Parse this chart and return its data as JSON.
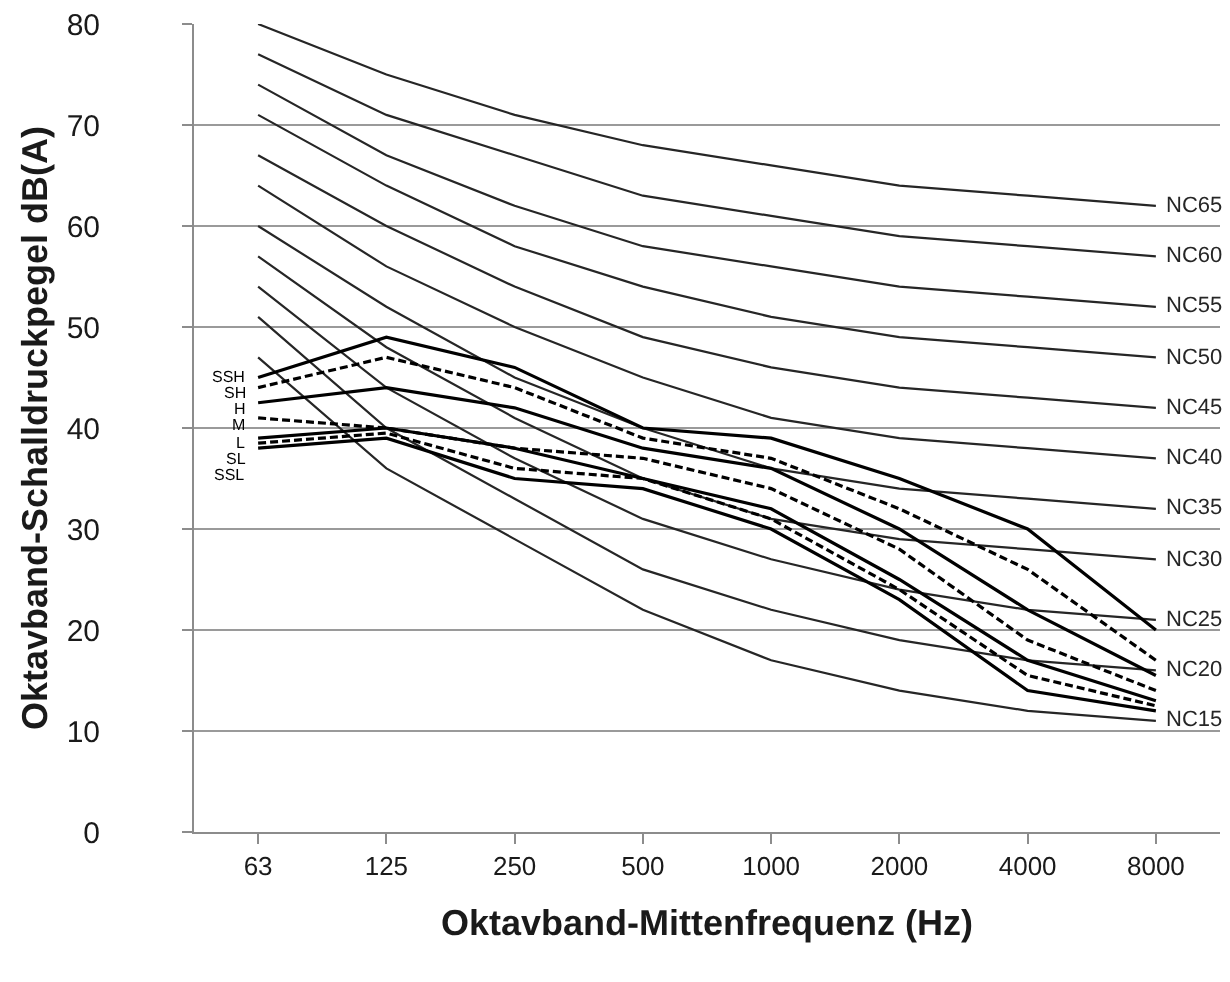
{
  "chart_data": {
    "type": "line",
    "xlabel": "Oktavband-Mittenfrequenz (Hz)",
    "ylabel": "Oktavband-Schalldruckpegel dB(A)",
    "categories": [
      "63",
      "125",
      "250",
      "500",
      "1000",
      "2000",
      "4000",
      "8000"
    ],
    "ylim": [
      0,
      80
    ],
    "yticks": [
      0,
      10,
      20,
      30,
      40,
      50,
      60,
      70,
      80
    ],
    "grid": "y",
    "legend": false,
    "marker": "none",
    "series": [
      {
        "name": "NC65",
        "color": "#262626",
        "values": [
          80,
          75,
          71,
          68,
          66,
          64,
          63,
          62
        ]
      },
      {
        "name": "NC60",
        "color": "#262626",
        "values": [
          77,
          71,
          67,
          63,
          61,
          59,
          58,
          57
        ]
      },
      {
        "name": "NC55",
        "color": "#262626",
        "values": [
          74,
          67,
          62,
          58,
          56,
          54,
          53,
          52
        ]
      },
      {
        "name": "NC50",
        "color": "#262626",
        "values": [
          71,
          64,
          58,
          54,
          51,
          49,
          48,
          47
        ]
      },
      {
        "name": "NC45",
        "color": "#262626",
        "values": [
          67,
          60,
          54,
          49,
          46,
          44,
          43,
          42
        ]
      },
      {
        "name": "NC40",
        "color": "#262626",
        "values": [
          64,
          56,
          50,
          45,
          41,
          39,
          38,
          37
        ]
      },
      {
        "name": "NC35",
        "color": "#262626",
        "values": [
          60,
          52,
          45,
          40,
          36,
          34,
          33,
          32
        ]
      },
      {
        "name": "NC30",
        "color": "#262626",
        "values": [
          57,
          48,
          41,
          35,
          31,
          29,
          28,
          27
        ]
      },
      {
        "name": "NC25",
        "color": "#262626",
        "values": [
          54,
          44,
          37,
          31,
          27,
          24,
          22,
          21
        ]
      },
      {
        "name": "NC20",
        "color": "#262626",
        "values": [
          51,
          40,
          33,
          26,
          22,
          19,
          17,
          16
        ]
      },
      {
        "name": "NC15",
        "color": "#262626",
        "values": [
          47,
          36,
          29,
          22,
          17,
          14,
          12,
          11
        ]
      },
      {
        "name": "SSH",
        "color": "#000000",
        "line_style": "solid",
        "values": [
          45,
          49,
          46,
          40,
          39,
          35,
          30,
          20
        ]
      },
      {
        "name": "SH",
        "color": "#000000",
        "line_style": "dashed",
        "values": [
          44,
          47,
          44,
          39,
          37,
          32,
          26,
          17
        ]
      },
      {
        "name": "H",
        "color": "#000000",
        "line_style": "solid",
        "values": [
          42.5,
          44,
          42,
          38,
          36,
          30,
          22,
          15.5
        ]
      },
      {
        "name": "M",
        "color": "#000000",
        "line_style": "dashed",
        "values": [
          41,
          40,
          38,
          37,
          34,
          28,
          19,
          14
        ]
      },
      {
        "name": "L",
        "color": "#000000",
        "line_style": "solid",
        "values": [
          39,
          40,
          38,
          35,
          32,
          25,
          17,
          13
        ]
      },
      {
        "name": "SL",
        "color": "#000000",
        "line_style": "dashed",
        "values": [
          38.5,
          39.5,
          36,
          35,
          31,
          24,
          15.5,
          12.5
        ]
      },
      {
        "name": "SSL",
        "color": "#000000",
        "line_style": "solid",
        "values": [
          38,
          39,
          35,
          34,
          30,
          23,
          14,
          12
        ]
      }
    ]
  }
}
